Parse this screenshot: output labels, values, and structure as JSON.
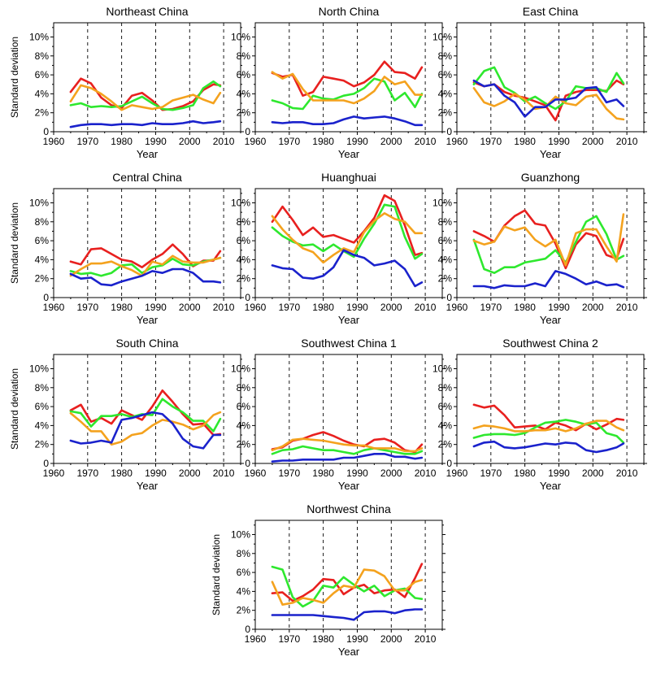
{
  "colors": {
    "red": "#e8201f",
    "green": "#2ee82e",
    "orange": "#f4a21e",
    "blue": "#1a22cc"
  },
  "shared": {
    "xlabel": "Year",
    "ylabel": "Standard deviation",
    "xticks": [
      "1960",
      "1970",
      "1980",
      "1990",
      "2000",
      "2010"
    ],
    "yticks": [
      "0",
      "2%",
      "4%",
      "6%",
      "8%",
      "10%"
    ]
  },
  "chart_data": [
    {
      "type": "line",
      "title": "Northeast China",
      "xlim": [
        1960,
        2015
      ],
      "ylim": [
        0,
        11.5
      ],
      "x": [
        1965,
        1968,
        1971,
        1974,
        1977,
        1980,
        1983,
        1986,
        1989,
        1992,
        1995,
        1998,
        2001,
        2004,
        2007,
        2009
      ],
      "series": [
        {
          "color": "red",
          "values": [
            4.2,
            5.6,
            5.1,
            3.6,
            2.8,
            2.5,
            3.8,
            4.1,
            3.3,
            2.3,
            2.4,
            2.7,
            3.2,
            4.4,
            5.0,
            4.9
          ]
        },
        {
          "color": "green",
          "values": [
            2.8,
            3.0,
            2.6,
            2.7,
            2.6,
            2.7,
            3.2,
            3.7,
            3.0,
            2.4,
            2.3,
            2.5,
            2.8,
            4.6,
            5.3,
            4.8
          ]
        },
        {
          "color": "orange",
          "values": [
            3.2,
            4.9,
            4.6,
            4.0,
            3.2,
            2.3,
            2.8,
            2.6,
            2.4,
            2.6,
            3.3,
            3.6,
            3.9,
            3.4,
            3.0,
            4.1
          ]
        },
        {
          "color": "blue",
          "values": [
            0.5,
            0.7,
            0.8,
            0.8,
            0.7,
            0.8,
            0.8,
            0.7,
            0.9,
            0.8,
            0.8,
            0.9,
            1.1,
            0.9,
            1.0,
            1.1
          ]
        }
      ]
    },
    {
      "type": "line",
      "title": "North China",
      "xlim": [
        1960,
        2015
      ],
      "ylim": [
        0,
        11.5
      ],
      "x": [
        1965,
        1968,
        1971,
        1974,
        1977,
        1980,
        1983,
        1986,
        1989,
        1992,
        1995,
        1998,
        2001,
        2004,
        2007,
        2009
      ],
      "series": [
        {
          "color": "red",
          "values": [
            6.2,
            5.8,
            6.0,
            3.8,
            4.2,
            5.8,
            5.6,
            5.4,
            4.8,
            5.2,
            6.0,
            7.4,
            6.3,
            6.2,
            5.6,
            6.8
          ]
        },
        {
          "color": "green",
          "values": [
            3.3,
            3.0,
            2.5,
            2.4,
            3.8,
            3.5,
            3.4,
            3.8,
            4.0,
            4.6,
            5.6,
            5.3,
            3.3,
            4.1,
            2.6,
            4.0
          ]
        },
        {
          "color": "orange",
          "values": [
            6.3,
            5.6,
            6.1,
            4.5,
            3.3,
            3.3,
            3.3,
            3.3,
            3.0,
            3.5,
            4.3,
            5.8,
            5.0,
            5.3,
            3.9,
            3.9
          ]
        },
        {
          "color": "blue",
          "values": [
            1.0,
            0.9,
            1.0,
            1.0,
            0.8,
            0.8,
            0.9,
            1.3,
            1.6,
            1.4,
            1.5,
            1.6,
            1.4,
            1.1,
            0.7,
            0.7
          ]
        }
      ]
    },
    {
      "type": "line",
      "title": "East China",
      "xlim": [
        1960,
        2015
      ],
      "ylim": [
        0,
        11.5
      ],
      "x": [
        1965,
        1968,
        1971,
        1974,
        1977,
        1980,
        1983,
        1986,
        1989,
        1992,
        1995,
        1998,
        2001,
        2004,
        2007,
        2009
      ],
      "series": [
        {
          "color": "red",
          "values": [
            5.2,
            4.8,
            5.0,
            4.2,
            3.8,
            3.6,
            3.2,
            2.8,
            1.2,
            3.8,
            4.2,
            4.4,
            4.4,
            4.3,
            5.4,
            5.0
          ]
        },
        {
          "color": "green",
          "values": [
            5.0,
            6.4,
            6.8,
            4.7,
            4.1,
            3.2,
            3.7,
            3.0,
            2.4,
            3.2,
            4.8,
            4.6,
            4.6,
            4.2,
            6.2,
            5.1
          ]
        },
        {
          "color": "orange",
          "values": [
            4.6,
            3.1,
            2.7,
            3.2,
            4.0,
            3.4,
            2.4,
            2.6,
            3.7,
            3.0,
            2.8,
            3.7,
            3.9,
            2.4,
            1.4,
            1.3
          ]
        },
        {
          "color": "blue",
          "values": [
            5.4,
            4.8,
            5.0,
            3.8,
            3.1,
            1.6,
            2.6,
            2.6,
            3.4,
            3.4,
            3.6,
            4.6,
            4.7,
            3.1,
            3.4,
            2.7
          ]
        }
      ]
    },
    {
      "type": "line",
      "title": "Central China",
      "xlim": [
        1960,
        2015
      ],
      "ylim": [
        0,
        11.5
      ],
      "x": [
        1965,
        1968,
        1971,
        1974,
        1977,
        1980,
        1983,
        1986,
        1989,
        1992,
        1995,
        1998,
        2001,
        2004,
        2007,
        2009
      ],
      "series": [
        {
          "color": "red",
          "values": [
            3.8,
            3.5,
            5.1,
            5.2,
            4.6,
            4.0,
            3.8,
            3.2,
            4.0,
            4.6,
            5.6,
            4.6,
            3.3,
            3.9,
            3.9,
            4.9
          ]
        },
        {
          "color": "green",
          "values": [
            2.8,
            2.5,
            2.6,
            2.3,
            2.6,
            3.4,
            3.5,
            2.6,
            3.2,
            3.4,
            4.1,
            3.5,
            3.4,
            3.8,
            4.0,
            4.2
          ]
        },
        {
          "color": "orange",
          "values": [
            2.3,
            3.0,
            3.6,
            3.6,
            3.8,
            3.3,
            2.9,
            2.3,
            3.8,
            3.5,
            4.4,
            3.8,
            3.7,
            3.7,
            4.0,
            4.2
          ]
        },
        {
          "color": "blue",
          "values": [
            2.5,
            2.0,
            2.1,
            1.4,
            1.3,
            1.7,
            2.0,
            2.3,
            2.8,
            2.6,
            3.0,
            3.0,
            2.6,
            1.7,
            1.7,
            1.6
          ]
        }
      ]
    },
    {
      "type": "line",
      "title": "Huanghuai",
      "xlim": [
        1960,
        2015
      ],
      "ylim": [
        0,
        11.5
      ],
      "x": [
        1965,
        1968,
        1971,
        1974,
        1977,
        1980,
        1983,
        1986,
        1989,
        1992,
        1995,
        1998,
        2001,
        2004,
        2007,
        2009
      ],
      "series": [
        {
          "color": "red",
          "values": [
            8.0,
            9.6,
            8.2,
            6.6,
            7.4,
            6.4,
            6.6,
            6.2,
            5.8,
            7.0,
            8.4,
            10.8,
            10.2,
            7.6,
            4.5,
            4.7
          ]
        },
        {
          "color": "green",
          "values": [
            7.4,
            6.5,
            5.9,
            5.5,
            5.6,
            4.9,
            5.6,
            4.9,
            4.3,
            6.2,
            7.8,
            9.8,
            9.6,
            6.4,
            4.1,
            4.6
          ]
        },
        {
          "color": "orange",
          "values": [
            8.6,
            7.2,
            6.1,
            5.2,
            4.8,
            3.7,
            4.5,
            5.2,
            4.8,
            6.9,
            8.1,
            8.9,
            8.3,
            8.0,
            6.8,
            6.8
          ]
        },
        {
          "color": "blue",
          "values": [
            3.4,
            3.1,
            3.0,
            2.1,
            2.0,
            2.3,
            3.2,
            5.0,
            4.5,
            4.2,
            3.4,
            3.6,
            3.9,
            3.0,
            1.2,
            1.6
          ]
        }
      ]
    },
    {
      "type": "line",
      "title": "Guanzhong",
      "xlim": [
        1960,
        2015
      ],
      "ylim": [
        0,
        11.5
      ],
      "x": [
        1965,
        1968,
        1971,
        1974,
        1977,
        1980,
        1983,
        1986,
        1989,
        1992,
        1995,
        1998,
        2001,
        2004,
        2007,
        2009
      ],
      "series": [
        {
          "color": "red",
          "values": [
            7.0,
            6.5,
            5.9,
            7.6,
            8.6,
            9.2,
            7.8,
            7.6,
            5.7,
            3.1,
            5.6,
            6.8,
            6.5,
            4.5,
            4.1,
            6.2
          ]
        },
        {
          "color": "green",
          "values": [
            6.1,
            3.0,
            2.6,
            3.2,
            3.2,
            3.7,
            3.9,
            4.1,
            5.0,
            3.7,
            5.9,
            8.0,
            8.6,
            6.7,
            4.0,
            4.4
          ]
        },
        {
          "color": "orange",
          "values": [
            6.0,
            5.6,
            5.9,
            7.5,
            7.1,
            7.4,
            6.1,
            5.4,
            6.1,
            3.4,
            6.8,
            7.2,
            7.2,
            5.4,
            3.8,
            8.8
          ]
        },
        {
          "color": "blue",
          "values": [
            1.2,
            1.2,
            1.0,
            1.3,
            1.2,
            1.2,
            1.5,
            1.2,
            2.8,
            2.5,
            2.0,
            1.4,
            1.7,
            1.3,
            1.4,
            1.1
          ]
        }
      ]
    },
    {
      "type": "line",
      "title": "South China",
      "xlim": [
        1960,
        2015
      ],
      "ylim": [
        0,
        11.5
      ],
      "x": [
        1965,
        1968,
        1971,
        1974,
        1977,
        1980,
        1983,
        1986,
        1989,
        1992,
        1995,
        1998,
        2001,
        2004,
        2007,
        2009
      ],
      "series": [
        {
          "color": "red",
          "values": [
            5.6,
            6.2,
            4.4,
            4.8,
            4.2,
            5.6,
            5.1,
            4.6,
            6.0,
            7.7,
            6.5,
            5.2,
            4.1,
            4.2,
            3.0,
            3.1
          ]
        },
        {
          "color": "green",
          "values": [
            5.5,
            5.3,
            3.9,
            5.0,
            5.0,
            5.2,
            4.9,
            5.2,
            5.1,
            6.8,
            6.0,
            5.4,
            4.5,
            4.5,
            3.4,
            4.7
          ]
        },
        {
          "color": "orange",
          "values": [
            5.3,
            4.4,
            3.4,
            3.4,
            2.0,
            2.3,
            3.0,
            3.2,
            4.0,
            4.6,
            4.4,
            4.1,
            3.6,
            4.0,
            5.1,
            5.4
          ]
        },
        {
          "color": "blue",
          "values": [
            2.4,
            2.1,
            2.2,
            2.4,
            2.2,
            4.6,
            4.8,
            5.1,
            5.4,
            5.2,
            4.2,
            2.6,
            1.8,
            1.6,
            3.0,
            3.0
          ]
        }
      ]
    },
    {
      "type": "line",
      "title": "Southwest China 1",
      "xlim": [
        1960,
        2015
      ],
      "ylim": [
        0,
        11.5
      ],
      "x": [
        1965,
        1968,
        1971,
        1974,
        1977,
        1980,
        1983,
        1986,
        1989,
        1992,
        1995,
        1998,
        2001,
        2004,
        2007,
        2009
      ],
      "series": [
        {
          "color": "red",
          "values": [
            1.5,
            1.7,
            2.4,
            2.6,
            3.0,
            3.3,
            2.9,
            2.4,
            2.0,
            1.8,
            2.5,
            2.6,
            2.2,
            1.4,
            1.2,
            2.0
          ]
        },
        {
          "color": "green",
          "values": [
            1.0,
            1.4,
            1.5,
            1.8,
            1.6,
            1.4,
            1.4,
            1.2,
            1.0,
            1.4,
            1.6,
            1.4,
            1.2,
            1.0,
            1.0,
            1.3
          ]
        },
        {
          "color": "orange",
          "values": [
            1.4,
            1.8,
            2.5,
            2.6,
            2.5,
            2.4,
            2.2,
            2.0,
            1.9,
            1.9,
            1.6,
            1.6,
            1.6,
            1.3,
            1.3,
            1.6
          ]
        },
        {
          "color": "blue",
          "values": [
            0.2,
            0.3,
            0.3,
            0.4,
            0.4,
            0.4,
            0.4,
            0.6,
            0.6,
            0.8,
            1.0,
            1.0,
            0.7,
            0.7,
            0.5,
            0.6
          ]
        }
      ]
    },
    {
      "type": "line",
      "title": "Southwest China 2",
      "xlim": [
        1960,
        2015
      ],
      "ylim": [
        0,
        11.5
      ],
      "x": [
        1965,
        1968,
        1971,
        1974,
        1977,
        1980,
        1983,
        1986,
        1989,
        1992,
        1995,
        1998,
        2001,
        2004,
        2007,
        2009
      ],
      "series": [
        {
          "color": "red",
          "values": [
            6.2,
            5.9,
            6.1,
            5.1,
            3.8,
            3.9,
            4.0,
            3.6,
            4.3,
            4.0,
            3.5,
            4.2,
            3.6,
            4.1,
            4.7,
            4.6
          ]
        },
        {
          "color": "green",
          "values": [
            2.7,
            3.0,
            3.1,
            3.1,
            3.0,
            3.2,
            3.8,
            4.3,
            4.4,
            4.6,
            4.4,
            4.1,
            4.3,
            3.2,
            2.9,
            2.2
          ]
        },
        {
          "color": "orange",
          "values": [
            3.7,
            4.0,
            3.9,
            3.7,
            3.4,
            3.4,
            3.5,
            3.5,
            3.7,
            3.4,
            3.7,
            4.2,
            4.5,
            4.5,
            3.8,
            3.5
          ]
        },
        {
          "color": "blue",
          "values": [
            1.8,
            2.2,
            2.3,
            1.7,
            1.6,
            1.7,
            1.9,
            2.1,
            2.0,
            2.2,
            2.1,
            1.4,
            1.2,
            1.4,
            1.7,
            2.1
          ]
        }
      ]
    },
    {
      "type": "line",
      "title": "Northwest China",
      "xlim": [
        1960,
        2015
      ],
      "ylim": [
        0,
        11.5
      ],
      "x": [
        1965,
        1968,
        1971,
        1974,
        1977,
        1980,
        1983,
        1986,
        1989,
        1992,
        1995,
        1998,
        2001,
        2004,
        2007,
        2009
      ],
      "series": [
        {
          "color": "red",
          "values": [
            3.8,
            3.9,
            3.0,
            3.5,
            4.2,
            5.3,
            5.2,
            3.7,
            4.4,
            4.7,
            3.8,
            4.1,
            4.2,
            3.4,
            5.4,
            6.9
          ]
        },
        {
          "color": "green",
          "values": [
            6.6,
            6.3,
            3.4,
            2.4,
            3.0,
            4.6,
            4.4,
            5.5,
            4.7,
            4.0,
            4.6,
            3.5,
            4.1,
            4.3,
            3.3,
            3.2
          ]
        },
        {
          "color": "orange",
          "values": [
            5.0,
            2.6,
            2.8,
            3.3,
            3.1,
            2.8,
            3.8,
            4.6,
            4.4,
            6.3,
            6.2,
            5.6,
            4.1,
            4.1,
            5.0,
            5.2
          ]
        },
        {
          "color": "blue",
          "values": [
            1.5,
            1.5,
            1.5,
            1.5,
            1.5,
            1.4,
            1.3,
            1.2,
            1.0,
            1.8,
            1.9,
            1.9,
            1.7,
            2.0,
            2.1,
            2.1
          ]
        }
      ]
    }
  ]
}
